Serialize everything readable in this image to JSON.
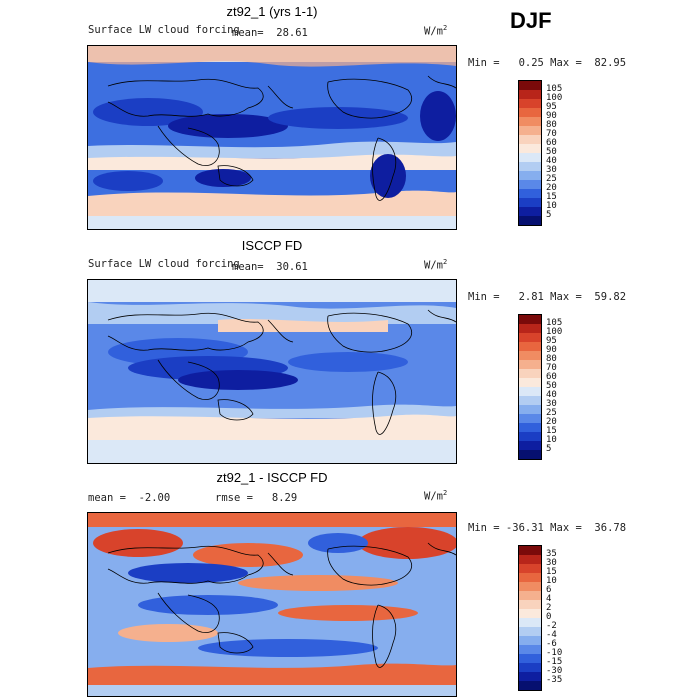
{
  "season": "DJF",
  "panels": [
    {
      "title": "zt92_1 (yrs 1-1)",
      "left_label": "Surface LW cloud forcing",
      "center_label": "mean=  28.61",
      "units": "W/m",
      "units_sup": "2",
      "stats": "Min =   0.25 Max =  82.95",
      "colorbar_labels": [
        "105",
        "100",
        "95",
        "90",
        "80",
        "70",
        "60",
        "50",
        "40",
        "30",
        "25",
        "20",
        "15",
        "10",
        "5"
      ],
      "colorbar_colors": [
        "#7a0a0a",
        "#b8251a",
        "#d8432b",
        "#e8663f",
        "#f08c62",
        "#f5b08e",
        "#f9d3bd",
        "#fbe9dc",
        "#dbe8f7",
        "#b2cdf2",
        "#86aeee",
        "#5a88e8",
        "#3160dc",
        "#1b3ec4",
        "#0e1ea0",
        "#061070"
      ]
    },
    {
      "title": "ISCCP FD",
      "left_label": "Surface LW cloud forcing",
      "center_label": "mean=  30.61",
      "units": "W/m",
      "units_sup": "2",
      "stats": "Min =   2.81 Max =  59.82",
      "colorbar_labels": [
        "105",
        "100",
        "95",
        "90",
        "80",
        "70",
        "60",
        "50",
        "40",
        "30",
        "25",
        "20",
        "15",
        "10",
        "5"
      ],
      "colorbar_colors": [
        "#7a0a0a",
        "#b8251a",
        "#d8432b",
        "#e8663f",
        "#f08c62",
        "#f5b08e",
        "#f9d3bd",
        "#fbe9dc",
        "#dbe8f7",
        "#b2cdf2",
        "#86aeee",
        "#5a88e8",
        "#3160dc",
        "#1b3ec4",
        "#0e1ea0",
        "#061070"
      ]
    },
    {
      "title": "zt92_1 - ISCCP FD",
      "left_label": "mean =  -2.00",
      "center_label": "rmse =   8.29",
      "units": "W/m",
      "units_sup": "2",
      "stats": "Min = -36.31 Max =  36.78",
      "colorbar_labels": [
        "35",
        "30",
        "15",
        "10",
        "6",
        "4",
        "2",
        "0",
        "-2",
        "-4",
        "-6",
        "-10",
        "-15",
        "-30",
        "-35"
      ],
      "colorbar_colors": [
        "#7a0a0a",
        "#b8251a",
        "#d8432b",
        "#e8663f",
        "#f08c62",
        "#f5b08e",
        "#f9d3bd",
        "#fbe9dc",
        "#dbe8f7",
        "#b2cdf2",
        "#86aeee",
        "#5a88e8",
        "#3160dc",
        "#1b3ec4",
        "#0e1ea0",
        "#061070"
      ]
    }
  ]
}
